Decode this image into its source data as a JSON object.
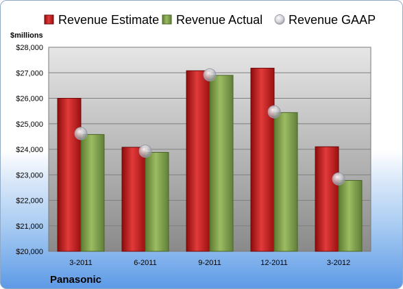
{
  "chart_data": {
    "type": "bar",
    "ylabel": "$millions",
    "footer": "Panasonic",
    "categories": [
      "3-2011",
      "6-2011",
      "9-2011",
      "12-2011",
      "3-2012"
    ],
    "series": [
      {
        "name": "Revenue Estimate",
        "kind": "bar",
        "color": "#d42a2a",
        "values": [
          26000,
          24080,
          27080,
          27180,
          24100
        ]
      },
      {
        "name": "Revenue Actual",
        "kind": "bar",
        "color": "#8fb05a",
        "values": [
          24580,
          23880,
          26900,
          25440,
          22780
        ]
      },
      {
        "name": "Revenue GAAP",
        "kind": "marker",
        "color": "#c8c8d0",
        "values": [
          24620,
          23930,
          26920,
          25470,
          22840
        ]
      }
    ],
    "ylim": [
      20000,
      28000
    ],
    "yticks": [
      "$20,000",
      "$21,000",
      "$22,000",
      "$23,000",
      "$24,000",
      "$25,000",
      "$26,000",
      "$27,000",
      "$28,000"
    ],
    "legend_position": "top",
    "grid": true
  }
}
